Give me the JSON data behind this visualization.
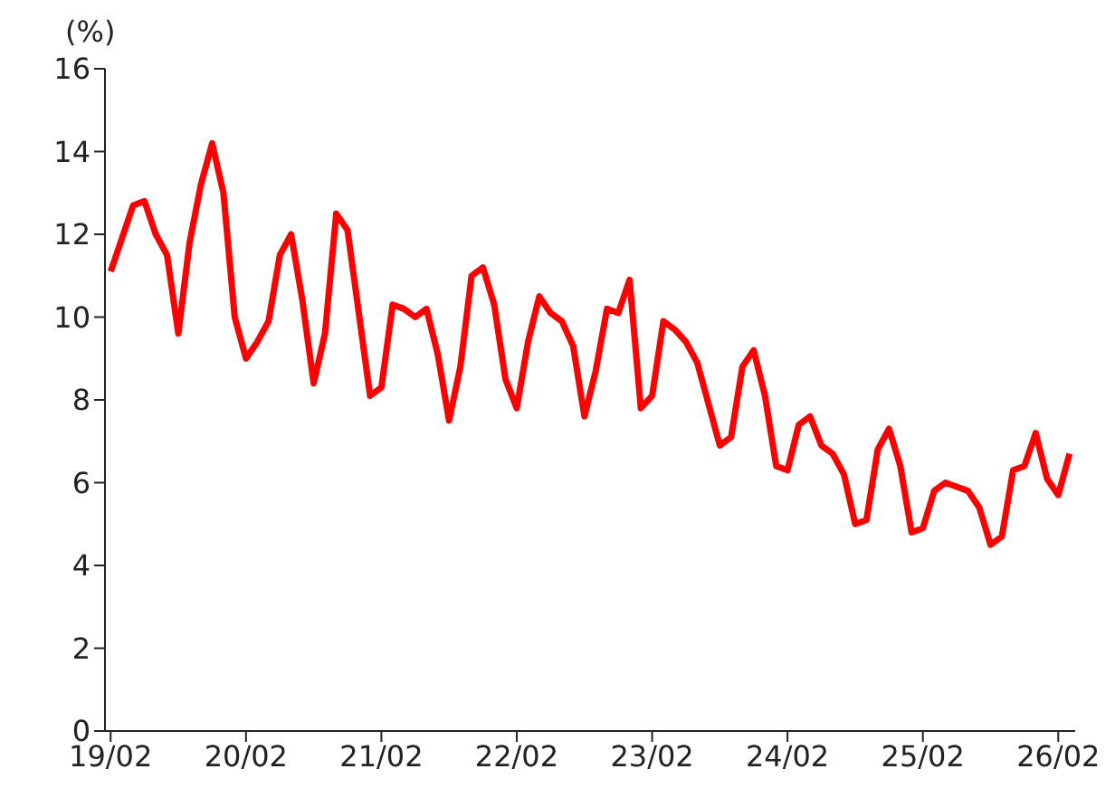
{
  "chart_data": {
    "type": "line",
    "ylabel": "(%)",
    "categories": [
      "19/02",
      null,
      null,
      null,
      null,
      null,
      null,
      null,
      null,
      null,
      null,
      null,
      "20/02",
      null,
      null,
      null,
      null,
      null,
      null,
      null,
      null,
      null,
      null,
      null,
      "21/02",
      null,
      null,
      null,
      null,
      null,
      null,
      null,
      null,
      null,
      null,
      null,
      "22/02",
      null,
      null,
      null,
      null,
      null,
      null,
      null,
      null,
      null,
      null,
      null,
      "23/02",
      null,
      null,
      null,
      null,
      null,
      null,
      null,
      null,
      null,
      null,
      null,
      "24/02",
      null,
      null,
      null,
      null,
      null,
      null,
      null,
      null,
      null,
      null,
      null,
      "25/02",
      null,
      null,
      null,
      null,
      null,
      null,
      null,
      null,
      null,
      null,
      null,
      "26/02",
      null
    ],
    "series": [
      {
        "color": "#ff0000",
        "values": [
          11.1,
          11.9,
          12.7,
          12.8,
          12.0,
          11.5,
          9.6,
          11.8,
          13.2,
          14.2,
          13.0,
          10.0,
          9.0,
          9.4,
          9.9,
          11.5,
          12.0,
          10.4,
          8.4,
          9.6,
          12.5,
          12.1,
          10.1,
          8.1,
          8.3,
          10.3,
          10.2,
          10.0,
          10.2,
          9.1,
          7.5,
          8.8,
          11.0,
          11.2,
          10.3,
          8.5,
          7.8,
          9.4,
          10.5,
          10.1,
          9.9,
          9.3,
          7.6,
          8.7,
          10.2,
          10.1,
          10.9,
          7.8,
          8.1,
          9.9,
          9.7,
          9.4,
          8.9,
          7.9,
          6.9,
          7.1,
          8.8,
          9.2,
          8.1,
          6.4,
          6.3,
          7.4,
          7.6,
          6.9,
          6.7,
          6.2,
          5.0,
          5.1,
          6.8,
          7.3,
          6.4,
          4.8,
          4.9,
          5.8,
          6.0,
          5.9,
          5.8,
          5.4,
          4.5,
          4.7,
          6.3,
          6.4,
          7.2,
          6.1,
          5.7,
          6.7
        ]
      }
    ],
    "ylim": [
      0,
      16
    ],
    "yticks": [
      0,
      2,
      4,
      6,
      8,
      10,
      12,
      14,
      16
    ],
    "marker": "none",
    "line_style": "solid",
    "grid": false,
    "legend": false
  }
}
